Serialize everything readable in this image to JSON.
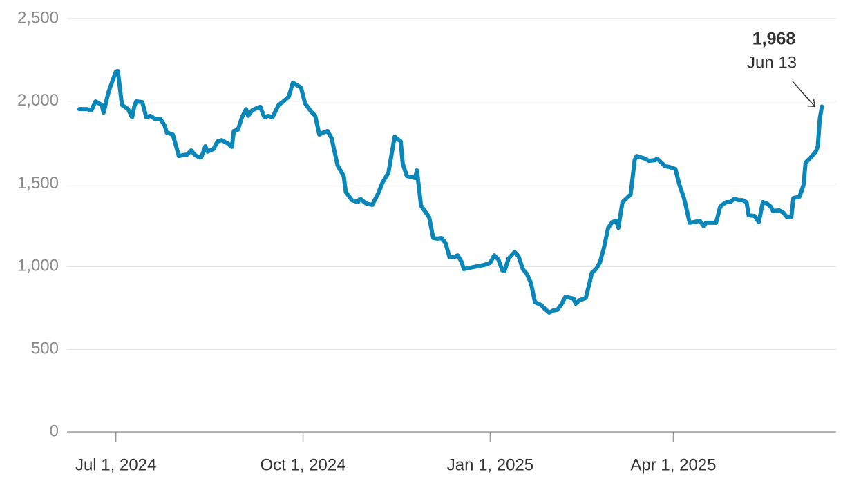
{
  "chart_data": {
    "type": "line",
    "color": "#0a86b8",
    "grid": true,
    "x": [
      "2024-06-13",
      "2024-06-17",
      "2024-06-19",
      "2024-06-21",
      "2024-06-24",
      "2024-06-25",
      "2024-06-27",
      "2024-06-28",
      "2024-07-01",
      "2024-07-02",
      "2024-07-03",
      "2024-07-04",
      "2024-07-07",
      "2024-07-09",
      "2024-07-10",
      "2024-07-11",
      "2024-07-14",
      "2024-07-16",
      "2024-07-18",
      "2024-07-20",
      "2024-07-23",
      "2024-07-25",
      "2024-07-26",
      "2024-07-29",
      "2024-08-01",
      "2024-08-03",
      "2024-08-05",
      "2024-08-07",
      "2024-08-09",
      "2024-08-11",
      "2024-08-12",
      "2024-08-14",
      "2024-08-15",
      "2024-08-18",
      "2024-08-20",
      "2024-08-22",
      "2024-08-25",
      "2024-08-27",
      "2024-08-28",
      "2024-08-30",
      "2024-09-01",
      "2024-09-03",
      "2024-09-04",
      "2024-09-06",
      "2024-09-08",
      "2024-09-10",
      "2024-09-12",
      "2024-09-14",
      "2024-09-16",
      "2024-09-19",
      "2024-09-21",
      "2024-09-24",
      "2024-09-26",
      "2024-09-30",
      "2024-10-02",
      "2024-10-05",
      "2024-10-07",
      "2024-10-09",
      "2024-10-11",
      "2024-10-13",
      "2024-10-15",
      "2024-10-18",
      "2024-10-21",
      "2024-10-22",
      "2024-10-25",
      "2024-10-28",
      "2024-10-29",
      "2024-11-01",
      "2024-11-04",
      "2024-11-07",
      "2024-11-09",
      "2024-11-12",
      "2024-11-13",
      "2024-11-15",
      "2024-11-18",
      "2024-11-19",
      "2024-11-21",
      "2024-11-25",
      "2024-11-26",
      "2024-11-28",
      "2024-12-02",
      "2024-12-04",
      "2024-12-06",
      "2024-12-08",
      "2024-12-10",
      "2024-12-12",
      "2024-12-14",
      "2024-12-16",
      "2024-12-18",
      "2024-12-19",
      "2024-12-22",
      "2024-12-29",
      "2025-01-01",
      "2025-01-03",
      "2025-01-05",
      "2025-01-07",
      "2025-01-08",
      "2025-01-10",
      "2025-01-13",
      "2025-01-15",
      "2025-01-17",
      "2025-01-19",
      "2025-01-21",
      "2025-01-23",
      "2025-01-26",
      "2025-01-28",
      "2025-01-30",
      "2025-02-01",
      "2025-02-03",
      "2025-02-05",
      "2025-02-07",
      "2025-02-11",
      "2025-02-12",
      "2025-02-14",
      "2025-02-17",
      "2025-02-18",
      "2025-02-20",
      "2025-02-22",
      "2025-02-24",
      "2025-02-26",
      "2025-02-28",
      "2025-03-02",
      "2025-03-04",
      "2025-03-05",
      "2025-03-07",
      "2025-03-11",
      "2025-03-13",
      "2025-03-14",
      "2025-03-18",
      "2025-03-20",
      "2025-03-23",
      "2025-03-24",
      "2025-03-27",
      "2025-03-28",
      "2025-03-30",
      "2025-04-02",
      "2025-04-04",
      "2025-04-06",
      "2025-04-07",
      "2025-04-09",
      "2025-04-11",
      "2025-04-14",
      "2025-04-16",
      "2025-04-17",
      "2025-04-20",
      "2025-04-22",
      "2025-04-24",
      "2025-04-25",
      "2025-04-27",
      "2025-04-29",
      "2025-05-01",
      "2025-05-03",
      "2025-05-05",
      "2025-05-07",
      "2025-05-08",
      "2025-05-11",
      "2025-05-13",
      "2025-05-15",
      "2025-05-17",
      "2025-05-19",
      "2025-05-20",
      "2025-05-23",
      "2025-05-25",
      "2025-05-27",
      "2025-05-29",
      "2025-05-30",
      "2025-06-02",
      "2025-06-04",
      "2025-06-05",
      "2025-06-07",
      "2025-06-10",
      "2025-06-11",
      "2025-06-12",
      "2025-06-13"
    ],
    "values": [
      1953,
      1953,
      1945,
      1999,
      1978,
      1932,
      2037,
      2078,
      2179,
      2183,
      2078,
      1978,
      1953,
      1903,
      1966,
      1999,
      1995,
      1903,
      1912,
      1895,
      1891,
      1853,
      1811,
      1799,
      1669,
      1674,
      1678,
      1703,
      1674,
      1661,
      1661,
      1728,
      1695,
      1711,
      1757,
      1765,
      1745,
      1724,
      1820,
      1828,
      1903,
      1953,
      1912,
      1945,
      1957,
      1966,
      1903,
      1912,
      1903,
      1978,
      1995,
      2028,
      2112,
      2083,
      1987,
      1937,
      1912,
      1799,
      1811,
      1820,
      1778,
      1611,
      1548,
      1452,
      1402,
      1390,
      1411,
      1382,
      1373,
      1444,
      1507,
      1569,
      1644,
      1786,
      1757,
      1624,
      1548,
      1536,
      1582,
      1369,
      1298,
      1173,
      1169,
      1173,
      1144,
      1056,
      1056,
      1068,
      1027,
      985,
      993,
      1010,
      1023,
      1068,
      1043,
      977,
      973,
      1048,
      1089,
      1060,
      985,
      956,
      902,
      785,
      768,
      743,
      722,
      735,
      739,
      772,
      818,
      806,
      776,
      797,
      810,
      860,
      964,
      985,
      1027,
      1119,
      1235,
      1269,
      1277,
      1235,
      1390,
      1436,
      1644,
      1669,
      1653,
      1640,
      1644,
      1653,
      1619,
      1607,
      1603,
      1590,
      1494,
      1423,
      1377,
      1265,
      1269,
      1277,
      1244,
      1265,
      1265,
      1265,
      1361,
      1373,
      1390,
      1390,
      1411,
      1402,
      1402,
      1390,
      1311,
      1306,
      1269,
      1390,
      1382,
      1361,
      1336,
      1340,
      1327,
      1298,
      1298,
      1415,
      1423,
      1494,
      1628,
      1653,
      1695,
      1728,
      1895,
      1968
    ],
    "xlim": [
      "2024-06-07",
      "2025-06-20"
    ],
    "xticks": [
      {
        "value": "2024-07-01",
        "label": "Jul 1, 2024"
      },
      {
        "value": "2024-10-01",
        "label": "Oct 1, 2024"
      },
      {
        "value": "2025-01-01",
        "label": "Jan 1, 2025"
      },
      {
        "value": "2025-04-01",
        "label": "Apr 1, 2025"
      }
    ],
    "ylim": [
      0,
      2500
    ],
    "yticks": [
      0,
      500,
      {
        "value": 1000,
        "label": "1,000"
      },
      {
        "value": 1500,
        "label": "1,500"
      },
      {
        "value": 2000,
        "label": "2,000"
      },
      {
        "value": 2500,
        "label": "2,500"
      }
    ],
    "annotation": {
      "value": 1968,
      "label": "1,968",
      "date": "Jun 13"
    }
  }
}
